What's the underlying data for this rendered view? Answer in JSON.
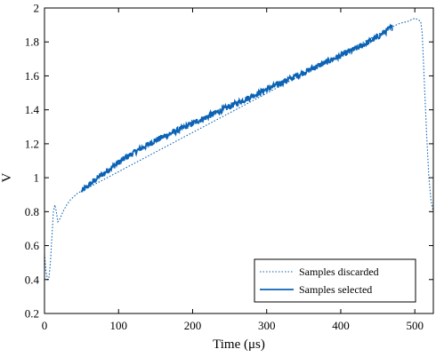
{
  "chart_data": {
    "type": "line",
    "xlabel": "Time (μs)",
    "ylabel": "V",
    "xlim": [
      0,
      525
    ],
    "ylim": [
      0.2,
      2.0
    ],
    "xticks": [
      0,
      100,
      200,
      300,
      400,
      500
    ],
    "yticks": [
      0.2,
      0.4,
      0.6,
      0.8,
      1.0,
      1.2,
      1.4,
      1.6,
      1.8,
      2.0
    ],
    "xtick_labels": [
      "0",
      "100",
      "200",
      "300",
      "400",
      "500"
    ],
    "ytick_labels": [
      "0.2",
      "0.4",
      "0.6",
      "0.8",
      "1",
      "1.2",
      "1.4",
      "1.6",
      "1.8",
      "2"
    ],
    "grid": false,
    "legend_position": "bottom-right",
    "series_color": "#0b63b5",
    "series": [
      {
        "name": "Samples discarded",
        "style": "dotted",
        "x": [
          0,
          2,
          4,
          6,
          8,
          10,
          12,
          14,
          16,
          18,
          20,
          25,
          30,
          35,
          40,
          45,
          50,
          470,
          480,
          490,
          495,
          500,
          505,
          508,
          510,
          513,
          516,
          519,
          522,
          525
        ],
        "y": [
          0.55,
          0.45,
          0.4,
          0.41,
          0.5,
          0.65,
          0.8,
          0.84,
          0.8,
          0.74,
          0.75,
          0.8,
          0.84,
          0.87,
          0.89,
          0.91,
          0.92,
          1.89,
          1.91,
          1.92,
          1.93,
          1.94,
          1.93,
          1.92,
          1.85,
          1.55,
          1.25,
          1.0,
          0.86,
          0.8
        ]
      },
      {
        "name": "Samples selected",
        "style": "solid",
        "x": [
          50,
          75,
          100,
          125,
          150,
          175,
          200,
          225,
          250,
          275,
          300,
          325,
          350,
          375,
          400,
          425,
          450,
          470
        ],
        "y": [
          0.92,
          1.01,
          1.09,
          1.16,
          1.22,
          1.27,
          1.32,
          1.37,
          1.42,
          1.47,
          1.52,
          1.57,
          1.62,
          1.67,
          1.72,
          1.77,
          1.83,
          1.89
        ]
      }
    ]
  }
}
